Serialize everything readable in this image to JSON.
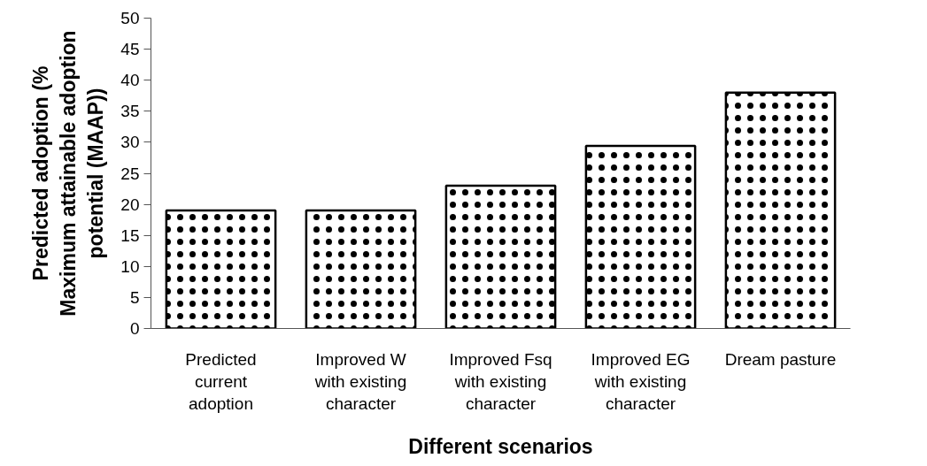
{
  "chart_data": {
    "type": "bar",
    "xlabel": "Different scenarios",
    "ylabel": "Predicted adoption (% Maximum attainable adoption potential (MAAP))",
    "categories": [
      "Predicted current adoption",
      "Improved W with existing character",
      "Improved Fsq with existing character",
      "Improved EG with existing character",
      "Dream pasture"
    ],
    "values": [
      19,
      19,
      23,
      29.4,
      38
    ],
    "color": "#ffffff",
    "ylim": [
      0,
      50
    ],
    "yticks": [
      0,
      5,
      10,
      15,
      20,
      25,
      30,
      35,
      40,
      45,
      50
    ],
    "grid": false
  }
}
